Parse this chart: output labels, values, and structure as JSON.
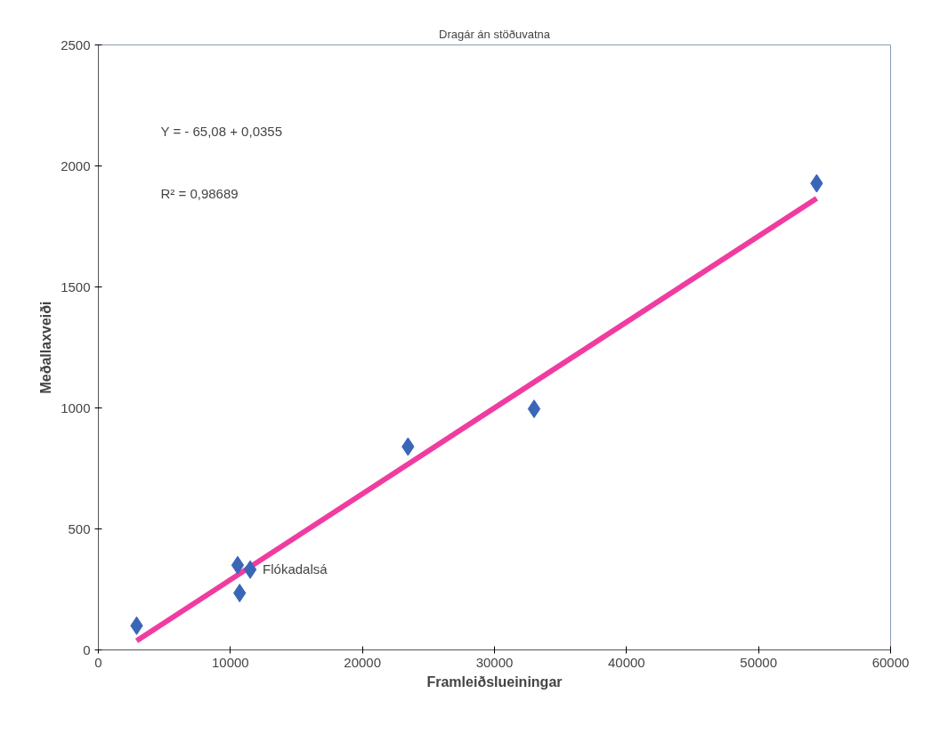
{
  "chart_data": {
    "type": "scatter",
    "title": "Dragár án stöðuvatna",
    "xlabel": "Framleiðslueiningar",
    "ylabel": "Meðallaxveiði",
    "xlim": [
      0,
      60000
    ],
    "xticks": [
      0,
      10000,
      20000,
      30000,
      40000,
      50000,
      60000
    ],
    "ylim": [
      0,
      2500
    ],
    "yticks": [
      0,
      500,
      1000,
      1500,
      2000,
      2500
    ],
    "grid": false,
    "marker": "diamond",
    "series": [
      {
        "color": "#3a66b8",
        "x": [
          2900,
          10550,
          10700,
          11500,
          23450,
          33000,
          54400
        ],
        "values": [
          100,
          350,
          235,
          332,
          840,
          996,
          1928
        ]
      },
      {
        "type": "line",
        "marker": "none",
        "color": "#f03ca0",
        "x": [
          2900,
          54400
        ],
        "values": [
          38,
          1866
        ]
      }
    ],
    "annotations": [
      "Y = - 65,08 + 0,0355",
      "R² = 0,98689",
      {
        "text": "Flókadalsá",
        "x": 11500,
        "y": 332
      }
    ]
  }
}
